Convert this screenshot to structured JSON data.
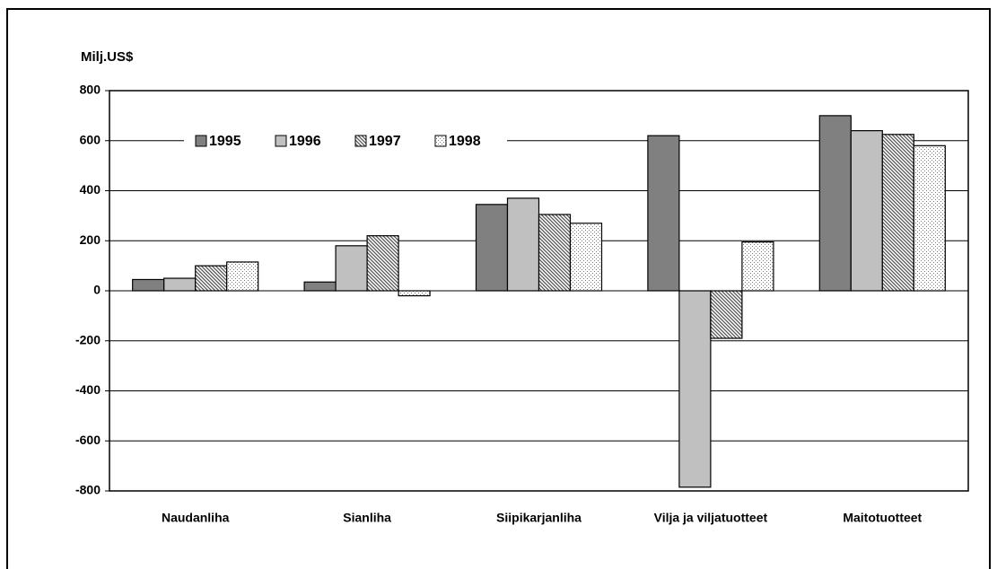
{
  "chart_data": {
    "type": "bar",
    "ylabel": "Milj.US$",
    "categories": [
      "Naudanliha",
      "Sianliha",
      "Siipikarjanliha",
      "Vilja ja viljatuotteet",
      "Maitotuotteet"
    ],
    "series": [
      {
        "name": "1995",
        "color": "#808080",
        "pattern": "solid",
        "values": [
          45,
          35,
          345,
          620,
          700
        ]
      },
      {
        "name": "1996",
        "color": "#c0c0c0",
        "pattern": "solid",
        "values": [
          50,
          180,
          370,
          -785,
          640
        ]
      },
      {
        "name": "1997",
        "color": "#808080",
        "pattern": "hatch",
        "values": [
          100,
          220,
          305,
          -190,
          625
        ]
      },
      {
        "name": "1998",
        "color": "#808080",
        "pattern": "dots",
        "values": [
          115,
          -20,
          270,
          195,
          580
        ]
      }
    ],
    "ylim": [
      -800,
      800
    ],
    "yticks": [
      -800,
      -600,
      -400,
      -200,
      0,
      200,
      400,
      600,
      800
    ],
    "grid": true,
    "legend": "top"
  }
}
